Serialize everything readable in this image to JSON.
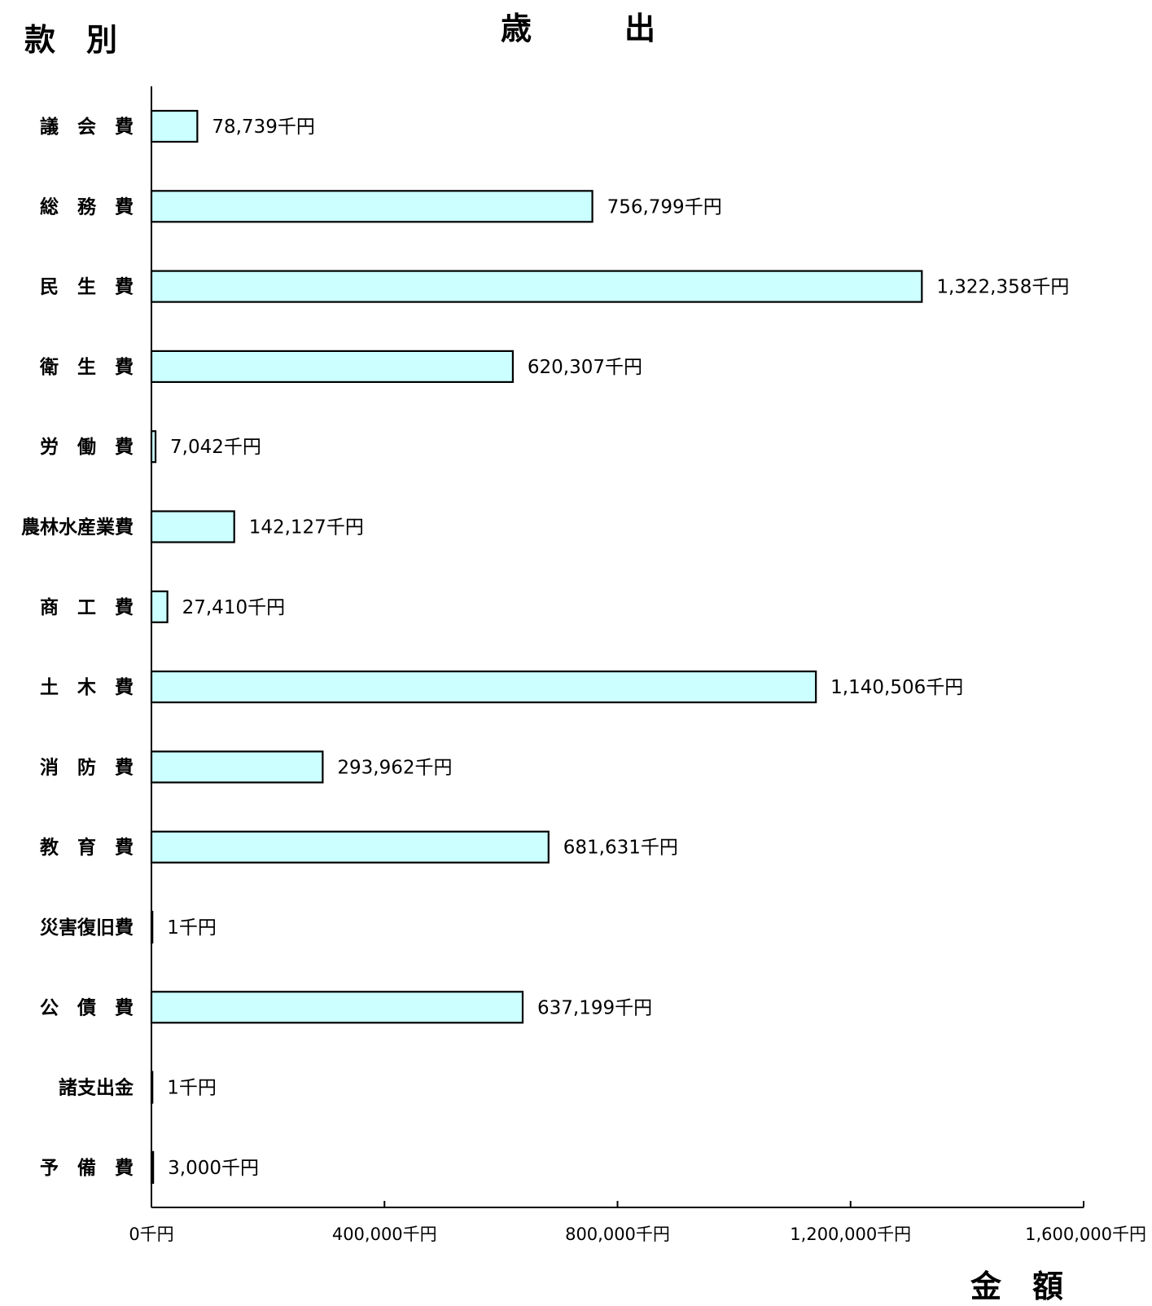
{
  "headers": {
    "category_heading": "款　別",
    "chart_title": "歳　　　出",
    "value_heading": "金　額"
  },
  "chart_data": {
    "type": "bar",
    "orientation": "horizontal",
    "title": "歳　　　出",
    "xlabel": "金　額",
    "ylabel": "款　別",
    "categories": [
      "議　会　費",
      "総　務　費",
      "民　生　費",
      "衛　生　費",
      "労　働　費",
      "農林水産業費",
      "商　工　費",
      "土　木　費",
      "消　防　費",
      "教　育　費",
      "災害復旧費",
      "公　債　費",
      "諸支出金",
      "予　備　費"
    ],
    "values": [
      78739,
      756799,
      1322358,
      620307,
      7042,
      142127,
      27410,
      1140506,
      293962,
      681631,
      1,
      637199,
      1,
      3000
    ],
    "data_labels": [
      "78,739千円",
      "756,799千円",
      "1,322,358千円",
      "620,307千円",
      "7,042千円",
      "142,127千円",
      "27,410千円",
      "1,140,506千円",
      "293,962千円",
      "681,631千円",
      "1千円",
      "637,199千円",
      "1千円",
      "3,000千円"
    ],
    "xlim": [
      0,
      1600000
    ],
    "xticks": [
      0,
      400000,
      800000,
      1200000,
      1600000
    ],
    "xtick_labels": [
      "0千円",
      "400,000千円",
      "800,000千円",
      "1,200,000千円",
      "1,600,000千円"
    ],
    "grid": false,
    "bar_color": "#ccffff",
    "bar_edge_color": "#000000"
  }
}
